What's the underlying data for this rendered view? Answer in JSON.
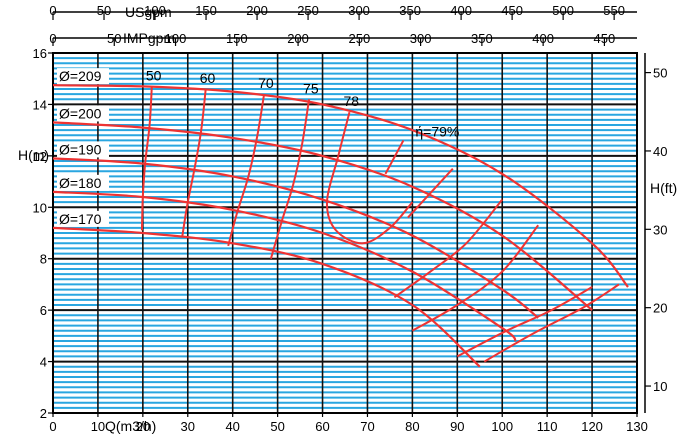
{
  "chart_data": {
    "type": "line",
    "axes": {
      "bottom": {
        "label": "Q(m3/h)",
        "min": 0,
        "max": 130,
        "ticks": [
          "0",
          "10",
          "20",
          "30",
          "40",
          "50",
          "60",
          "70",
          "80",
          "90",
          "100",
          "110",
          "120",
          "130"
        ]
      },
      "left": {
        "label": "H(m)",
        "min": 2,
        "max": 16,
        "ticks": [
          "2",
          "4",
          "6",
          "8",
          "10",
          "12",
          "14",
          "16"
        ]
      },
      "right": {
        "label": "H(ft)",
        "min": 6.56,
        "max": 52.5,
        "ticks": [
          "10",
          "20",
          "30",
          "40",
          "50"
        ]
      },
      "top_us": {
        "label": "USgpm",
        "min": 0,
        "max": 572.4,
        "ticks": [
          "0",
          "50",
          "100",
          "150",
          "200",
          "250",
          "300",
          "350",
          "400",
          "450",
          "500",
          "550"
        ]
      },
      "top_imp": {
        "label": "IMPgpm",
        "min": 0,
        "max": 476.6,
        "ticks": [
          "0",
          "50",
          "100",
          "150",
          "200",
          "250",
          "300",
          "350",
          "400",
          "450"
        ]
      }
    },
    "grid": true,
    "series": [
      {
        "name": "Ø=209",
        "x": [
          0,
          20,
          40,
          60,
          80,
          100,
          120,
          128
        ],
        "y": [
          14.75,
          14.7,
          14.5,
          14.0,
          13.0,
          11.3,
          8.6,
          6.9
        ]
      },
      {
        "name": "Ø=200",
        "x": [
          0,
          20,
          40,
          60,
          80,
          100,
          120
        ],
        "y": [
          13.3,
          13.1,
          12.7,
          12.0,
          10.8,
          8.9,
          6.0
        ]
      },
      {
        "name": "Ø=190",
        "x": [
          0,
          20,
          40,
          60,
          80,
          100,
          108
        ],
        "y": [
          11.9,
          11.7,
          11.2,
          10.3,
          8.9,
          6.8,
          5.7
        ]
      },
      {
        "name": "Ø=180",
        "x": [
          0,
          20,
          40,
          60,
          80,
          100,
          103
        ],
        "y": [
          10.6,
          10.4,
          9.9,
          9.0,
          7.5,
          5.3,
          4.8
        ]
      },
      {
        "name": "Ø=170",
        "x": [
          0,
          20,
          40,
          60,
          80,
          95
        ],
        "y": [
          9.2,
          9.0,
          8.6,
          7.8,
          6.2,
          3.8
        ]
      }
    ],
    "efficiency_curves": [
      {
        "label": "50",
        "x": [
          22,
          21.5,
          20.5,
          20.0,
          19.8
        ],
        "y": [
          14.7,
          13.2,
          11.7,
          10.4,
          9.1
        ]
      },
      {
        "label": "60",
        "x": [
          34,
          33.0,
          31.5,
          30.0,
          28.8
        ],
        "y": [
          14.6,
          13.0,
          11.5,
          10.2,
          8.9
        ]
      },
      {
        "label": "70",
        "x": [
          47,
          45.5,
          43.5,
          41.0,
          39.0
        ],
        "y": [
          14.4,
          12.8,
          11.2,
          9.8,
          8.5
        ]
      },
      {
        "label": "75",
        "x": [
          57,
          55.5,
          53.5,
          51.0,
          48.5
        ],
        "y": [
          14.2,
          12.5,
          10.9,
          9.5,
          8.0
        ]
      },
      {
        "label": "78",
        "x": [
          66,
          63.5,
          61.0,
          63.0,
          69.0,
          75.0,
          80.0
        ],
        "y": [
          13.7,
          12.0,
          10.2,
          9.1,
          8.6,
          9.2,
          10.2
        ]
      },
      {
        "label": "ή=79%",
        "x": [
          78,
          74.0
        ],
        "y": [
          12.6,
          11.3
        ]
      },
      {
        "label": "",
        "x": [
          89,
          79.0
        ],
        "y": [
          11.5,
          9.6
        ]
      },
      {
        "label": "",
        "x": [
          100,
          92.0,
          84.0,
          76.0
        ],
        "y": [
          10.3,
          8.6,
          7.5,
          6.5
        ]
      },
      {
        "label": "",
        "x": [
          108,
          100.0,
          90.0,
          80.0
        ],
        "y": [
          9.3,
          7.5,
          6.2,
          5.2
        ]
      },
      {
        "label": "",
        "x": [
          120,
          111.0,
          101.0,
          90.0
        ],
        "y": [
          6.9,
          6.0,
          5.2,
          4.2
        ]
      },
      {
        "label": "",
        "x": [
          126,
          118.0,
          107.0,
          96.0
        ],
        "y": [
          7.0,
          6.1,
          5.1,
          4.0
        ]
      }
    ],
    "colors": {
      "curve": "#ee3333",
      "grid_major": "#111111",
      "grid_minor": "#2aa6e0",
      "background": "#ffffff"
    }
  }
}
